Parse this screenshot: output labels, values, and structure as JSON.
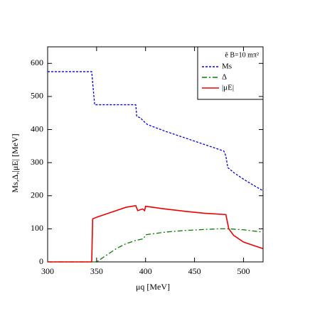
{
  "chart_data": {
    "type": "line",
    "x_label": "μq [MeV]",
    "y_label": "Ms,Δ,|μE| [MeV]",
    "legend_title": "ẽ B=10 mπ²",
    "legend": "top-right",
    "xlim": [
      300,
      520
    ],
    "xticks": [
      300,
      350,
      400,
      450,
      500
    ],
    "ylim": [
      0,
      650
    ],
    "yticks": [
      0,
      100,
      200,
      300,
      400,
      500,
      600
    ],
    "grid": false,
    "series": [
      {
        "name": "Ms",
        "color": "#0000ee",
        "style": "dashed",
        "x": [
          300,
          345,
          348,
          390,
          391,
          395,
          398,
          402,
          420,
          440,
          460,
          480,
          482,
          484,
          490,
          500,
          510,
          520
        ],
        "values": [
          575,
          575,
          475,
          475,
          440,
          435,
          425,
          415,
          395,
          375,
          355,
          335,
          320,
          285,
          270,
          250,
          232,
          215
        ]
      },
      {
        "name": "Δ",
        "color": "#008000",
        "style": "dashdot",
        "x": [
          300,
          350,
          355,
          360,
          370,
          380,
          390,
          398,
          400,
          420,
          440,
          460,
          475,
          485,
          500,
          520
        ],
        "values": [
          0,
          0,
          10,
          20,
          40,
          55,
          65,
          70,
          82,
          90,
          95,
          98,
          100,
          100,
          97,
          90
        ]
      },
      {
        "name": "|μE|",
        "color": "#ee0000",
        "style": "solid",
        "x": [
          300,
          345,
          346,
          350,
          360,
          370,
          380,
          390,
          392,
          397,
          399,
          400,
          420,
          440,
          460,
          482,
          485,
          490,
          500,
          520
        ],
        "values": [
          0,
          0,
          130,
          135,
          145,
          155,
          165,
          170,
          155,
          160,
          155,
          168,
          160,
          153,
          147,
          143,
          100,
          80,
          60,
          40
        ]
      }
    ]
  }
}
